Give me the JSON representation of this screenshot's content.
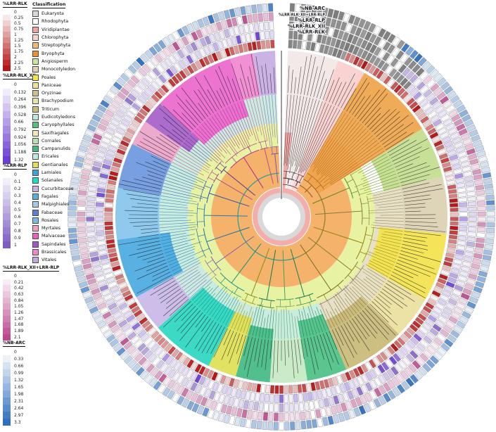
{
  "legends": {
    "scales": [
      {
        "title": "%LRR-RLK",
        "dark": "#b51616",
        "ticks": [
          "0",
          "0.25",
          "0.5",
          "0.75",
          "1",
          "1.25",
          "1.5",
          "1.75",
          "2",
          "2.25",
          "2.5"
        ]
      },
      {
        "title": "%LRR-RLK_XII",
        "dark": "#6a3fd2",
        "ticks": [
          "0",
          "0.132",
          "0.264",
          "0.396",
          "0.528",
          "0.66",
          "0.792",
          "0.924",
          "1.056",
          "1.188",
          "1.32"
        ]
      },
      {
        "title": "%LRR-RLP",
        "dark": "#7e5cc4",
        "ticks": [
          "0",
          "0.1",
          "0.2",
          "0.3",
          "0.4",
          "0.5",
          "0.6",
          "0.7",
          "0.8",
          "0.9",
          "1"
        ]
      },
      {
        "title": "%LRR-RLK_XII+LRR-RLP",
        "dark": "#bb4a8d",
        "ticks": [
          "0",
          "0.21",
          "0.42",
          "0.63",
          "0.84",
          "1.05",
          "1.26",
          "1.47",
          "1.68",
          "1.89",
          "2.1"
        ]
      },
      {
        "title": "%NB-ARC",
        "dark": "#2f6fc0",
        "ticks": [
          "0",
          "0.33",
          "0.66",
          "0.99",
          "1.32",
          "1.65",
          "1.98",
          "2.31",
          "2.64",
          "2.97",
          "3.3"
        ]
      }
    ],
    "classification": {
      "title": "Classification",
      "items": [
        {
          "label": "Eukaryota",
          "color": "#d9d9d9"
        },
        {
          "label": "Rhodophyta",
          "color": "#ffffff"
        },
        {
          "label": "Viridiplantae",
          "color": "#f4a09c"
        },
        {
          "label": "Chlorophyta",
          "color": "#f9d2d1"
        },
        {
          "label": "Streptophyta",
          "color": "#f5b971"
        },
        {
          "label": "Bryophyta",
          "color": "#ef9130"
        },
        {
          "label": "Angiosperm",
          "color": "#c6e89f"
        },
        {
          "label": "Monocotyledon",
          "color": "#ded3b6"
        },
        {
          "label": "Poales",
          "color": "#f5e642"
        },
        {
          "label": "Paniceae",
          "color": "#efe3a2"
        },
        {
          "label": "Oryzinae",
          "color": "#cfc08b"
        },
        {
          "label": "Brachypodium",
          "color": "#e8e3a8"
        },
        {
          "label": "Triticum",
          "color": "#c9b978"
        },
        {
          "label": "Eudicotyledons",
          "color": "#bfe8dd"
        },
        {
          "label": "Caryophyllales",
          "color": "#4fc47f"
        },
        {
          "label": "Saxifragales",
          "color": "#efe9b5"
        },
        {
          "label": "Cornales",
          "color": "#b7e3b1"
        },
        {
          "label": "Campanulids",
          "color": "#42b883"
        },
        {
          "label": "Ericales",
          "color": "#bfe9e3"
        },
        {
          "label": "Gentianales",
          "color": "#e1e154"
        },
        {
          "label": "Lamiales",
          "color": "#3f9fd8"
        },
        {
          "label": "Solanales",
          "color": "#19e0c0"
        },
        {
          "label": "Cucurbitaceae",
          "color": "#c4b3e3"
        },
        {
          "label": "Fagales",
          "color": "#58aee0"
        },
        {
          "label": "Malpighiales",
          "color": "#a8c8ee"
        },
        {
          "label": "Fabaceae",
          "color": "#5b7fd6"
        },
        {
          "label": "Rosales",
          "color": "#77bbe8"
        },
        {
          "label": "Myrtales",
          "color": "#efa3c3"
        },
        {
          "label": "Malvaceae",
          "color": "#ee5fc0"
        },
        {
          "label": "Sapindales",
          "color": "#a058c8"
        },
        {
          "label": "Brassicales",
          "color": "#f484c8"
        },
        {
          "label": "Vitales",
          "color": "#c3a8e0"
        }
      ]
    }
  },
  "chart_data": {
    "type": "heatmap",
    "subtype": "circular phylogenetic tree with 5 concentric per-species heatmap rings",
    "leaf_slots": 235,
    "rings": [
      {
        "label": "%LRR-RLK",
        "max_color": "#b51616",
        "tick_min": "0",
        "tick_max": "2.5"
      },
      {
        "label": "%LRR-RLK_XII",
        "max_color": "#6a3fd2",
        "tick_min": "0",
        "tick_max": "1.32"
      },
      {
        "label": "%LRR-RLP",
        "max_color": "#7e5cc4",
        "tick_min": "0",
        "tick_max": "1"
      },
      {
        "label": "%LRR-RLK_XII+LRR-RLP",
        "max_color": "#bb4a8d",
        "tick_min": "0",
        "tick_max": "2.1"
      },
      {
        "label": "%NB-ARC",
        "max_color": "#2f6fc0",
        "tick_min": "0",
        "tick_max": "3.3"
      }
    ],
    "gray_until_deg": [
      22,
      44,
      40,
      46,
      36
    ],
    "sectors": [
      {
        "clade": "Eukaryota (outgroup)",
        "a0": 2,
        "a1": 20,
        "band": "#f2e7e6",
        "branch": "#333333",
        "treeInner": 55,
        "bandIn": 42,
        "gray": true
      },
      {
        "clade": "Chlorophyta",
        "a0": 20,
        "a1": 30,
        "band": "#f7cfcd",
        "branch": "#3a3a3a",
        "treeInner": 55,
        "bandIn": 42,
        "gray": true
      },
      {
        "clade": "Bryophyta / Streptophyta",
        "a0": 30,
        "a1": 58,
        "band": "#efa44a",
        "branch": "#a3651b",
        "treeInner": 62,
        "bandIn": 62
      },
      {
        "clade": "Angiosperm (basal)",
        "a0": 58,
        "a1": 76,
        "band": "#c3dc8e",
        "branch": "#628424",
        "treeInner": 105,
        "bandIn": 150
      },
      {
        "clade": "Monocotyledon",
        "a0": 76,
        "a1": 96,
        "band": "#dbd0b2",
        "branch": "#8c7c42",
        "treeInner": 115,
        "bandIn": 174
      },
      {
        "clade": "Poales",
        "a0": 96,
        "a1": 120,
        "band": "#f2e24c",
        "branch": "#91810e",
        "treeInner": 122,
        "bandIn": 140
      },
      {
        "clade": "Paniceae",
        "a0": 120,
        "a1": 135,
        "band": "#ebdf9e",
        "branch": "#8a7a30",
        "treeInner": 126,
        "bandIn": 174
      },
      {
        "clade": "Oryzinae / Brachypodium / Triticum",
        "a0": 135,
        "a1": 157,
        "band": "#c9b977",
        "branch": "#7c6c2a",
        "treeInner": 126,
        "bandIn": 160
      },
      {
        "clade": "Caryophyllales",
        "a0": 157,
        "a1": 171,
        "band": "#4cc084",
        "branch": "#1e7c4e",
        "treeInner": 118,
        "bandIn": 150
      },
      {
        "clade": "Saxifragales / Cornales",
        "a0": 171,
        "a1": 184,
        "band": "#c5e9c2",
        "branch": "#4e9c5e",
        "treeInner": 118,
        "bandIn": 174
      },
      {
        "clade": "Campanulids",
        "a0": 184,
        "a1": 196,
        "band": "#43ba85",
        "branch": "#187a50",
        "treeInner": 120,
        "bandIn": 160
      },
      {
        "clade": "Gentianales",
        "a0": 196,
        "a1": 206,
        "band": "#dfdf55",
        "branch": "#8a8a12",
        "treeInner": 120,
        "bandIn": 150
      },
      {
        "clade": "Solanales",
        "a0": 206,
        "a1": 228,
        "band": "#2bd7bf",
        "branch": "#109086",
        "treeInner": 118,
        "bandIn": 150
      },
      {
        "clade": "Cucurbitaceae",
        "a0": 228,
        "a1": 241,
        "band": "#c9b8e7",
        "branch": "#7b60b2",
        "treeInner": 115,
        "bandIn": 174
      },
      {
        "clade": "Lamiales / Fagales",
        "a0": 241,
        "a1": 262,
        "band": "#4aa9e1",
        "branch": "#1b70a9",
        "treeInner": 112,
        "bandIn": 160
      },
      {
        "clade": "Rosales",
        "a0": 262,
        "a1": 280,
        "band": "#86c5ed",
        "branch": "#2b7bb1",
        "treeInner": 110,
        "bandIn": 174
      },
      {
        "clade": "Fabaceae / Malpighiales",
        "a0": 280,
        "a1": 296,
        "band": "#6b97de",
        "branch": "#2b56a9",
        "treeInner": 108,
        "bandIn": 174
      },
      {
        "clade": "Myrtales",
        "a0": 296,
        "a1": 305,
        "band": "#eca3c9",
        "branch": "#b94b89",
        "treeInner": 108,
        "bandIn": 174
      },
      {
        "clade": "Sapindales",
        "a0": 305,
        "a1": 313,
        "band": "#a660c9",
        "branch": "#6b308b",
        "treeInner": 106,
        "bandIn": 160
      },
      {
        "clade": "Malvaceae",
        "a0": 313,
        "a1": 342,
        "band": "#eb67cc",
        "branch": "#b12690",
        "treeInner": 100,
        "bandIn": 150
      },
      {
        "clade": "Brassicales",
        "a0": 342,
        "a1": 350,
        "band": "#f087ce",
        "branch": "#b94b99",
        "treeInner": 100,
        "bandIn": 174
      },
      {
        "clade": "Vitales",
        "a0": 350,
        "a1": 358,
        "band": "#c8ace4",
        "branch": "#7b56b1",
        "treeInner": 90,
        "bandIn": 174
      }
    ],
    "inner_rings": {
      "eukaryota_gray": "#d9d9d9",
      "viridiplantae_pink": "#f3aeac",
      "streptophyta_orange": "#f5b26a",
      "angiosperm_yellowgreen": "#e7f3a2",
      "eudicot_mint": "#c9ecdf",
      "monocot_tan": "#e7e0c8"
    }
  }
}
